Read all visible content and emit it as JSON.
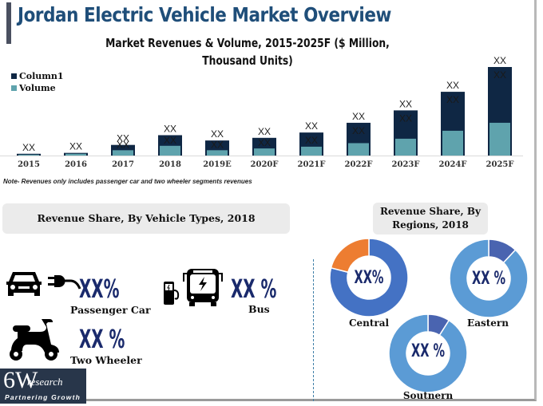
{
  "page": {
    "title": "Jordan Electric Vehicle Market Overview",
    "note": "Note- Revenues only includes passenger car and two wheeler segments revenues"
  },
  "chart_data": {
    "type": "bar",
    "stacked": true,
    "title": "Market Revenues & Volume, 2015-2025F ($ Million, Thousand Units)",
    "xlabel": "",
    "ylabel": "",
    "categories": [
      "2015",
      "2016",
      "2017",
      "2018",
      "2019E",
      "2020F",
      "2021F",
      "2022F",
      "2023F",
      "2024F",
      "2025F"
    ],
    "series": [
      {
        "name": "Volume",
        "color": "#5fa3ad",
        "values": [
          1,
          2,
          6,
          11,
          6,
          8,
          10,
          14,
          19,
          28,
          37
        ]
      },
      {
        "name": "Column1",
        "color": "#0f2744",
        "values": [
          1,
          1,
          6,
          12,
          11,
          12,
          16,
          23,
          32,
          44,
          63
        ]
      }
    ],
    "data_labels": {
      "total": [
        "XX",
        "XX",
        "XX",
        "XX",
        "XX",
        "XX",
        "XX",
        "XX",
        "XX",
        "XX",
        "XX"
      ],
      "inner": [
        "",
        "",
        "XX",
        "XX",
        "XX",
        "XX",
        "XX",
        "XX",
        "XX",
        "XX",
        "XX"
      ]
    },
    "legend": [
      "Column1",
      "Volume"
    ],
    "legend_position": "top-left",
    "ylim": [
      0,
      100
    ],
    "grid": false,
    "y_axis_visible": false
  },
  "vehicle_types": {
    "heading": "Revenue Share, By Vehicle Types, 2018",
    "items": [
      {
        "name": "Passenger Car",
        "value": "XX%",
        "icon": "car-plug-icon"
      },
      {
        "name": "Bus",
        "value": "XX %",
        "icon": "electric-bus-icon"
      },
      {
        "name": "Two Wheeler",
        "value": "XX %",
        "icon": "scooter-icon"
      }
    ]
  },
  "regions": {
    "heading": "Revenue Share, By Regions, 2018",
    "donuts": [
      {
        "name": "Central",
        "value": "XX%",
        "share": 0.79,
        "main_color": "#4472c4",
        "other_color": "#ed7d31"
      },
      {
        "name": "Eastern",
        "value": "XX %",
        "share": 0.88,
        "main_color": "#5b9bd5",
        "other_color": "#4a64b0"
      },
      {
        "name": "Soutnern",
        "value": "XX %",
        "share": 0.91,
        "main_color": "#5b9bd5",
        "other_color": "#4a64b0"
      }
    ]
  },
  "logo": {
    "main": "6W",
    "sub": "research",
    "tagline": "Partnering Growth"
  }
}
